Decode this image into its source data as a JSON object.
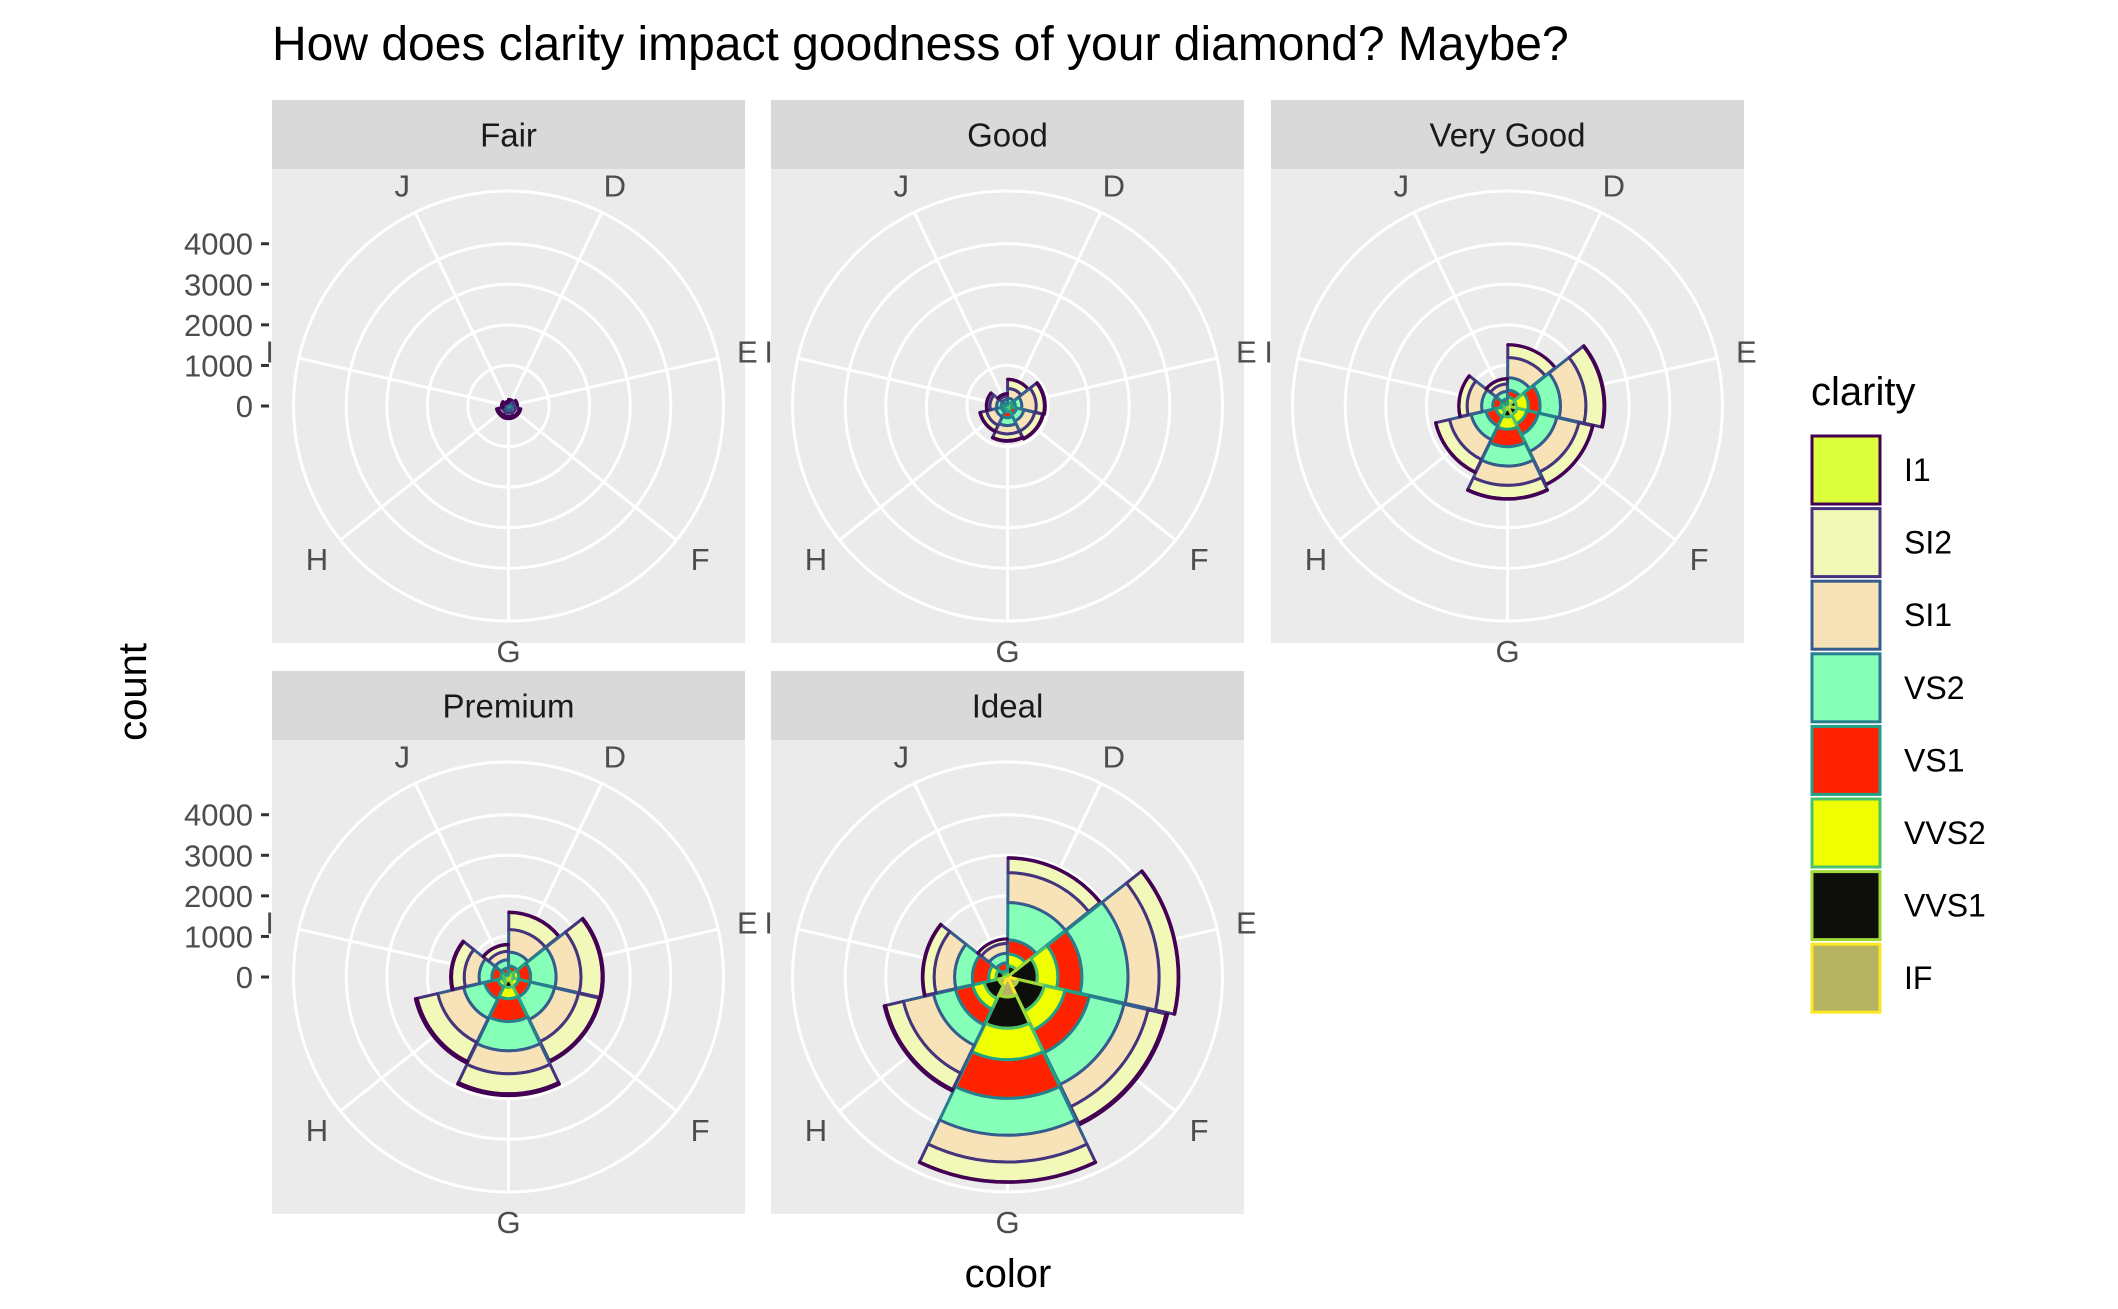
{
  "chart_data": {
    "type": "bar",
    "subtype": "polar-stacked-bar (coord_polar), faceted by cut",
    "title": "How does clarity impact goodness of your diamond? Maybe?",
    "xlabel": "color",
    "ylabel": "count",
    "legend_title": "clarity",
    "legend_position": "right",
    "grid": true,
    "panel_background": "#EBEBEB",
    "strip_background": "#D9D9D9",
    "categories": [
      "D",
      "E",
      "F",
      "G",
      "H",
      "I",
      "J"
    ],
    "y_ticks": [
      0,
      1000,
      2000,
      3000,
      4000
    ],
    "ylim": [
      0,
      5300
    ],
    "clarity_levels": [
      {
        "name": "I1",
        "fill": "#DCFF3C",
        "stroke": "#440154"
      },
      {
        "name": "SI2",
        "fill": "#F2F9B8",
        "stroke": "#46337E"
      },
      {
        "name": "SI1",
        "fill": "#F8E3B8",
        "stroke": "#365C8D"
      },
      {
        "name": "VS2",
        "fill": "#86FFB9",
        "stroke": "#277F8E"
      },
      {
        "name": "VS1",
        "fill": "#FF2200",
        "stroke": "#1FA187"
      },
      {
        "name": "VVS2",
        "fill": "#EFFF00",
        "stroke": "#4AC16D"
      },
      {
        "name": "VVS1",
        "fill": "#0E0E0A",
        "stroke": "#9FDA3A"
      },
      {
        "name": "IF",
        "fill": "#B6B460",
        "stroke": "#FDE725"
      }
    ],
    "facets": [
      {
        "label": "Fair",
        "counts": {
          "D": [
            4,
            56,
            58,
            25,
            5,
            9,
            3,
            3
          ],
          "E": [
            9,
            78,
            65,
            42,
            14,
            13,
            3,
            0
          ],
          "F": [
            35,
            89,
            83,
            53,
            33,
            10,
            5,
            4
          ],
          "G": [
            53,
            80,
            69,
            45,
            45,
            17,
            3,
            2
          ],
          "H": [
            52,
            91,
            75,
            41,
            32,
            11,
            1,
            2
          ],
          "I": [
            34,
            45,
            30,
            32,
            25,
            8,
            1,
            0
          ],
          "J": [
            23,
            27,
            28,
            23,
            16,
            1,
            1,
            0
          ]
        }
      },
      {
        "label": "Good",
        "counts": {
          "D": [
            8,
            223,
            237,
            104,
            43,
            25,
            13,
            9
          ],
          "E": [
            23,
            202,
            355,
            160,
            89,
            52,
            43,
            9
          ],
          "F": [
            19,
            201,
            273,
            184,
            132,
            50,
            35,
            15
          ],
          "G": [
            19,
            163,
            207,
            192,
            152,
            75,
            41,
            22
          ],
          "H": [
            14,
            158,
            235,
            138,
            77,
            45,
            31,
            4
          ],
          "I": [
            9,
            81,
            165,
            110,
            103,
            26,
            22,
            6
          ],
          "J": [
            4,
            53,
            88,
            90,
            52,
            13,
            1,
            6
          ]
        }
      },
      {
        "label": "Very Good",
        "counts": {
          "D": [
            5,
            314,
            494,
            309,
            175,
            141,
            52,
            23
          ],
          "E": [
            22,
            445,
            626,
            503,
            293,
            298,
            170,
            43
          ],
          "F": [
            13,
            343,
            559,
            466,
            293,
            249,
            174,
            67
          ],
          "G": [
            16,
            327,
            474,
            479,
            432,
            302,
            190,
            79
          ],
          "H": [
            12,
            343,
            547,
            376,
            257,
            145,
            115,
            29
          ],
          "I": [
            8,
            200,
            358,
            274,
            205,
            71,
            69,
            19
          ],
          "J": [
            8,
            128,
            182,
            184,
            120,
            29,
            19,
            8
          ]
        }
      },
      {
        "label": "Premium",
        "counts": {
          "D": [
            12,
            421,
            556,
            339,
            131,
            94,
            40,
            10
          ],
          "E": [
            30,
            519,
            614,
            629,
            292,
            121,
            105,
            27
          ],
          "F": [
            34,
            523,
            608,
            619,
            290,
            146,
            80,
            31
          ],
          "G": [
            46,
            492,
            566,
            721,
            566,
            275,
            171,
            87
          ],
          "H": [
            46,
            521,
            655,
            532,
            336,
            118,
            112,
            40
          ],
          "I": [
            24,
            312,
            367,
            315,
            221,
            82,
            84,
            23
          ],
          "J": [
            13,
            161,
            209,
            202,
            153,
            34,
            24,
            12
          ]
        }
      },
      {
        "label": "Ideal",
        "counts": {
          "D": [
            13,
            356,
            738,
            920,
            351,
            284,
            252,
            28
          ],
          "E": [
            18,
            469,
            766,
            1136,
            593,
            507,
            656,
            79
          ],
          "F": [
            42,
            453,
            608,
            879,
            616,
            520,
            667,
            268
          ],
          "G": [
            16,
            486,
            660,
            910,
            953,
            774,
            774,
            491
          ],
          "H": [
            38,
            450,
            763,
            556,
            435,
            289,
            367,
            226
          ],
          "I": [
            17,
            274,
            504,
            438,
            408,
            178,
            186,
            95
          ],
          "J": [
            2,
            110,
            243,
            232,
            201,
            54,
            74,
            25
          ]
        }
      }
    ]
  }
}
